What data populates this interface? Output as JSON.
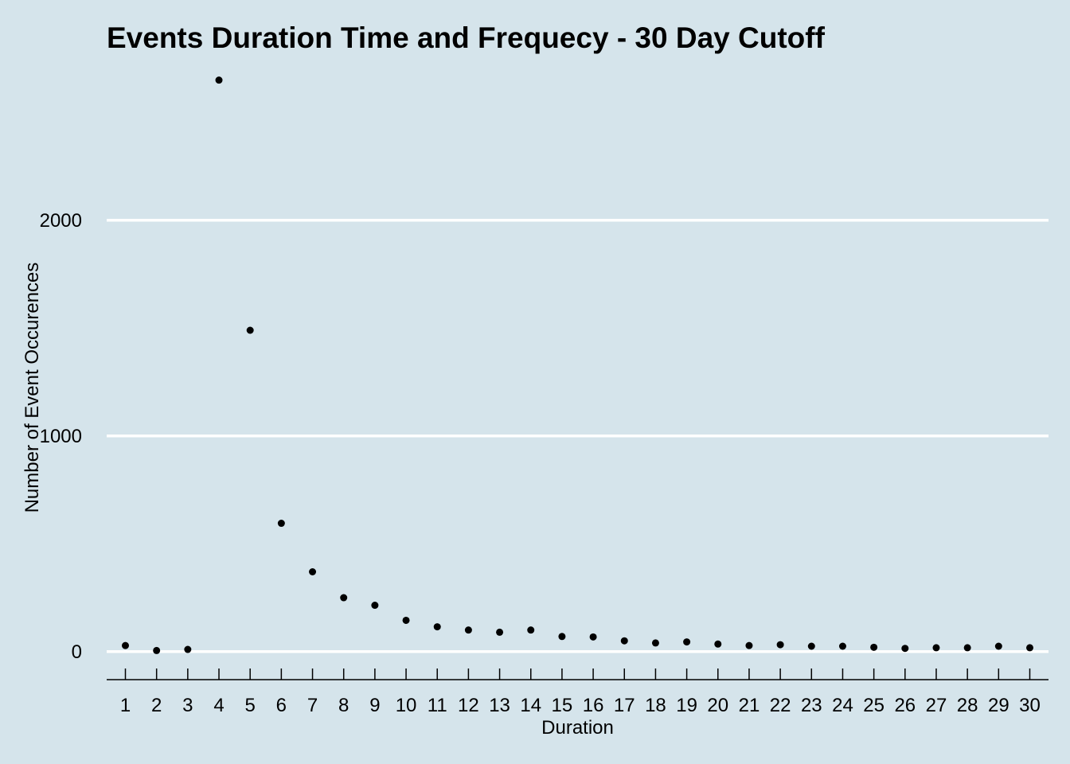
{
  "chart_data": {
    "type": "scatter",
    "title": "Events Duration Time and Frequecy - 30 Day Cutoff",
    "xlabel": "Duration",
    "ylabel": "Number of Event Occurences",
    "x": [
      1,
      2,
      3,
      4,
      5,
      6,
      7,
      8,
      9,
      10,
      11,
      12,
      13,
      14,
      15,
      16,
      17,
      18,
      19,
      20,
      21,
      22,
      23,
      24,
      25,
      26,
      27,
      28,
      29,
      30
    ],
    "y": [
      28,
      5,
      10,
      2650,
      1490,
      595,
      370,
      250,
      215,
      145,
      115,
      100,
      90,
      100,
      70,
      68,
      50,
      40,
      45,
      35,
      28,
      32,
      25,
      25,
      20,
      15,
      18,
      18,
      25,
      18
    ],
    "y_ticks": [
      0,
      1000,
      2000
    ],
    "y_tick_labels": [
      "0",
      "1000",
      "2000"
    ],
    "x_tick_labels": [
      "1",
      "2",
      "3",
      "4",
      "5",
      "6",
      "7",
      "8",
      "9",
      "10",
      "11",
      "12",
      "13",
      "14",
      "15",
      "16",
      "17",
      "18",
      "19",
      "20",
      "21",
      "22",
      "23",
      "24",
      "25",
      "26",
      "27",
      "28",
      "29",
      "30"
    ],
    "ylim": [
      -130,
      2800
    ],
    "xlim": [
      0.4,
      30.6
    ],
    "grid": "horizontal major",
    "background_color": "#d5e4eb",
    "gridline_color": "#ffffff",
    "point_color": "#000000"
  }
}
